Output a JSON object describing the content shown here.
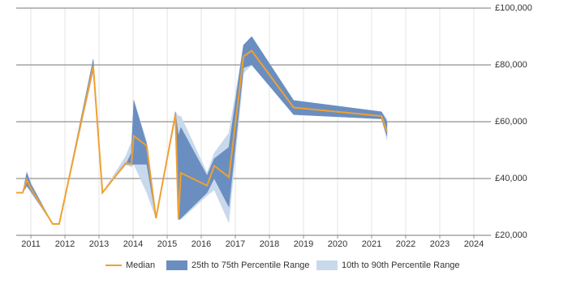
{
  "chart_data": {
    "type": "line",
    "x": [
      2010.57,
      2010.76,
      2010.88,
      2011.0,
      2011.64,
      2011.83,
      2012.83,
      2013.1,
      2013.79,
      2013.95,
      2014.02,
      2014.4,
      2014.67,
      2015.24,
      2015.33,
      2015.4,
      2016.17,
      2016.38,
      2016.81,
      2017.24,
      2017.48,
      2018.71,
      2021.29,
      2021.45
    ],
    "series": [
      {
        "name": "10th to 90th Percentile Range",
        "color": "#c9d9ec",
        "low": [
          35000,
          35000,
          37000,
          35000,
          24000,
          24000,
          78000,
          35000,
          45000,
          44000,
          45000,
          35000,
          26000,
          61000,
          25500,
          25500,
          34000,
          36000,
          24500,
          77000,
          80000,
          62500,
          61000,
          53500
        ],
        "high": [
          35000,
          35000,
          42500,
          38500,
          24000,
          24000,
          82000,
          35000,
          48000,
          53000,
          67500,
          53000,
          26000,
          63500,
          62000,
          62000,
          42000,
          49000,
          56000,
          87000,
          90000,
          67500,
          63500,
          61000
        ]
      },
      {
        "name": "25th to 75th Percentile Range",
        "color": "#6a8ec0",
        "low": [
          35000,
          35000,
          37500,
          35500,
          24000,
          24000,
          78000,
          35000,
          45000,
          45000,
          45000,
          45000,
          26000,
          62000,
          25500,
          26000,
          35000,
          40000,
          30000,
          79000,
          80000,
          62500,
          61000,
          55000
        ],
        "high": [
          35000,
          35000,
          42000,
          38000,
          24000,
          24000,
          82000,
          35000,
          45000,
          49000,
          67500,
          52000,
          26000,
          63500,
          55000,
          58000,
          41000,
          47000,
          51000,
          87000,
          90000,
          67500,
          63500,
          60000
        ]
      },
      {
        "name": "Median",
        "color": "#f0a030",
        "values": [
          35000,
          35000,
          39500,
          36500,
          24000,
          24000,
          79500,
          35000,
          45500,
          45000,
          55000,
          51500,
          26000,
          62500,
          26000,
          42000,
          37500,
          44500,
          40500,
          83000,
          85000,
          65000,
          62000,
          56500
        ]
      }
    ],
    "xlim": [
      2010.57,
      2024.5
    ],
    "xticks": [
      2011,
      2012,
      2013,
      2014,
      2015,
      2016,
      2017,
      2018,
      2019,
      2020,
      2021,
      2022,
      2023,
      2024
    ],
    "ylim": [
      20000,
      100000
    ],
    "yticks": [
      {
        "value": 20000,
        "label": "£20,000"
      },
      {
        "value": 40000,
        "label": "£40,000"
      },
      {
        "value": 60000,
        "label": "£60,000"
      },
      {
        "value": 80000,
        "label": "£80,000"
      },
      {
        "value": 100000,
        "label": "£100,000"
      }
    ],
    "grid": true
  }
}
